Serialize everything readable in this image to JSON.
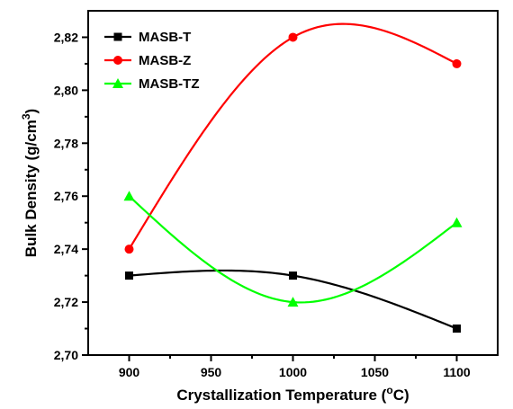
{
  "chart_data": {
    "type": "line",
    "xlabel": "Crystallization Temperature (",
    "xlabel_sup": "o",
    "xlabel_tail": "C)",
    "ylabel": "Bulk Density (g/cm",
    "ylabel_sup": "3",
    "ylabel_tail": ")",
    "x": [
      900,
      1000,
      1100
    ],
    "xlim": [
      875,
      1125
    ],
    "ylim": [
      2.7,
      2.83
    ],
    "xticks": [
      900,
      950,
      1000,
      1050,
      1100
    ],
    "xtick_labels": [
      "900",
      "950",
      "1000",
      "1050",
      "1100"
    ],
    "yticks": [
      2.7,
      2.72,
      2.74,
      2.76,
      2.78,
      2.8,
      2.82
    ],
    "ytick_labels": [
      "2,70",
      "2,72",
      "2,74",
      "2,76",
      "2,78",
      "2,80",
      "2,82"
    ],
    "legend_position": "top-left",
    "series": [
      {
        "name": "MASB-T",
        "values": [
          2.73,
          2.73,
          2.71
        ],
        "color": "#000000",
        "marker": "square"
      },
      {
        "name": "MASB-Z",
        "values": [
          2.74,
          2.82,
          2.81
        ],
        "color": "#ff0000",
        "marker": "circle"
      },
      {
        "name": "MASB-TZ",
        "values": [
          2.76,
          2.72,
          2.75
        ],
        "color": "#00ff00",
        "marker": "triangle"
      }
    ]
  }
}
